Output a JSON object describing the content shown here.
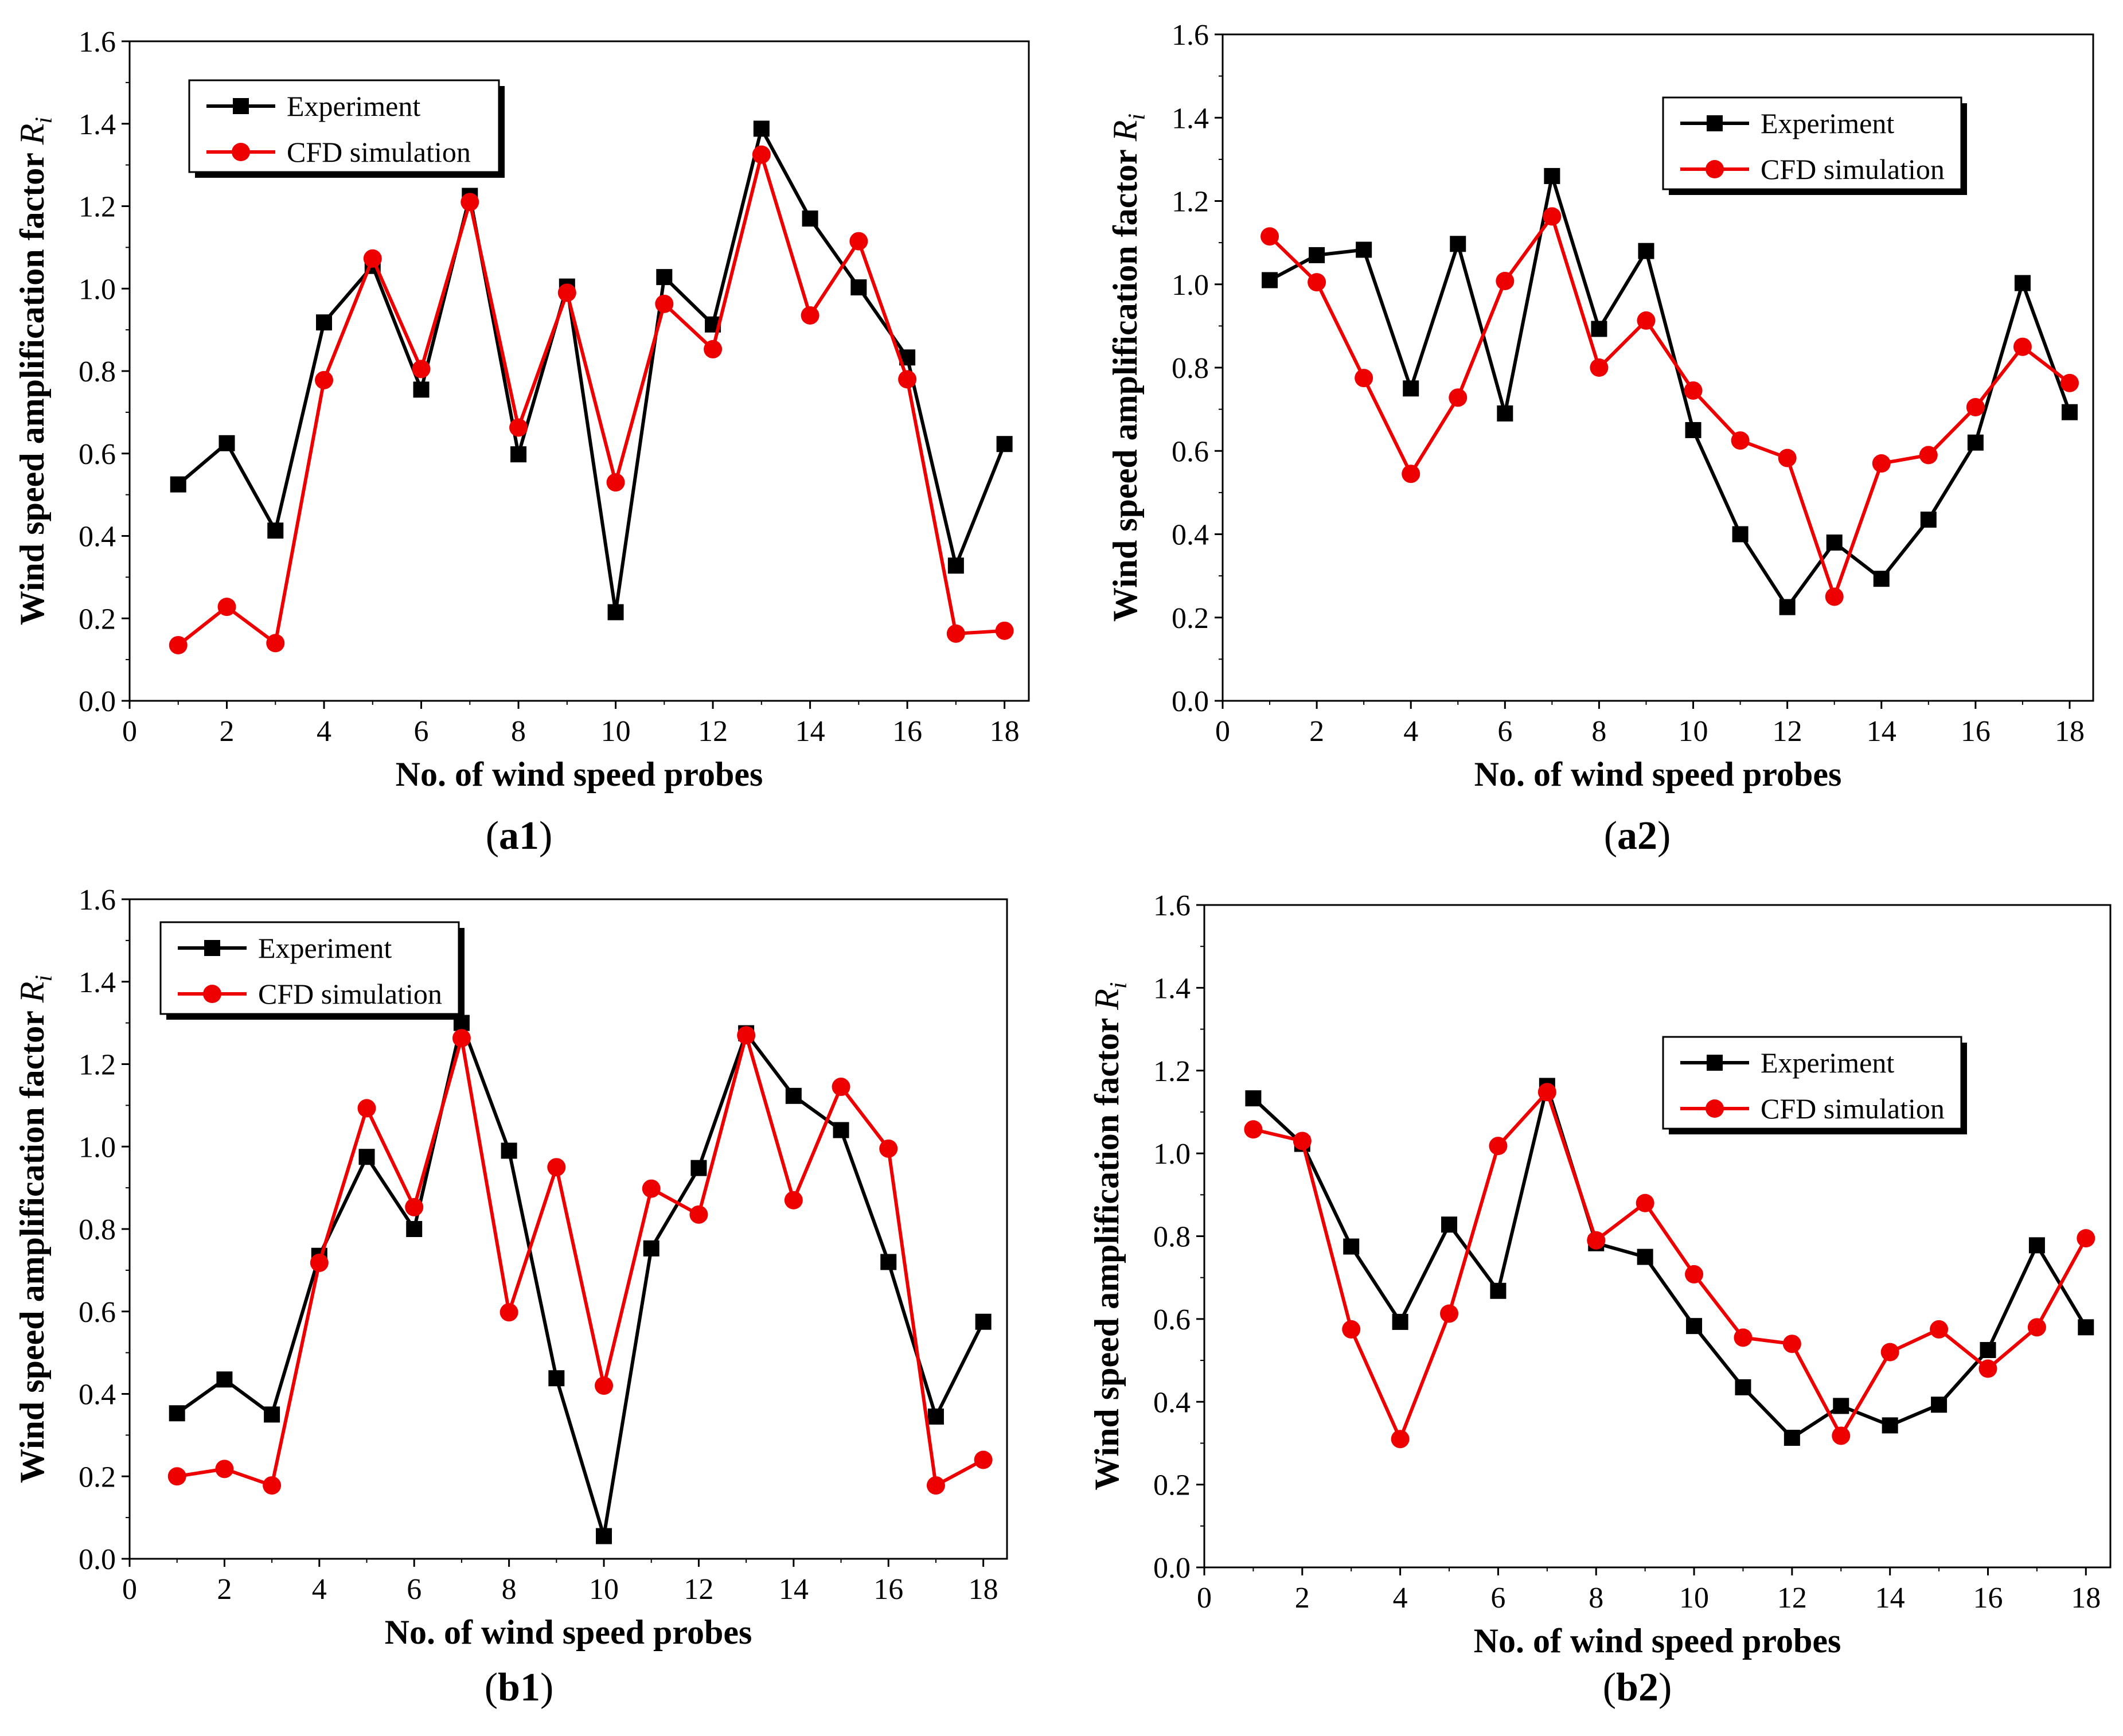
{
  "figure": {
    "panel_labels": {
      "a1": {
        "open": "(",
        "bold": "a1",
        "close": ")"
      },
      "a2": {
        "open": "(",
        "bold": "a2",
        "close": ")"
      },
      "b1": {
        "open": "(",
        "bold": "b1",
        "close": ")"
      },
      "b2": {
        "open": "(",
        "bold": "b2",
        "close": ")"
      }
    }
  },
  "colors": {
    "experiment": "#000000",
    "cfd": "#ee0000"
  },
  "chart_data": [
    {
      "id": "a1",
      "type": "line",
      "xlabel": "No. of wind speed probes",
      "ylabel_main": "Wind speed amplification factor ",
      "ylabel_var": "R",
      "ylabel_sub": "i",
      "xlim": [
        0,
        18.5
      ],
      "ylim": [
        0,
        1.6
      ],
      "xticks": [
        0,
        2,
        4,
        6,
        8,
        10,
        12,
        14,
        16,
        18
      ],
      "yticks": [
        "0.0",
        "0.2",
        "0.4",
        "0.6",
        "0.8",
        "1.0",
        "1.2",
        "1.4",
        "1.6"
      ],
      "legend_position": "top-left",
      "x": [
        1,
        2,
        3,
        4,
        5,
        6,
        7,
        8,
        9,
        10,
        11,
        12,
        13,
        14,
        15,
        16,
        17,
        18
      ],
      "series": [
        {
          "name": "Experiment",
          "marker": "square",
          "values": [
            0.525,
            0.625,
            0.413,
            0.918,
            1.055,
            0.755,
            1.225,
            0.598,
            1.005,
            0.215,
            1.028,
            0.913,
            1.388,
            1.17,
            1.003,
            0.833,
            0.328,
            0.623
          ]
        },
        {
          "name": "CFD simulation",
          "marker": "circle",
          "values": [
            0.135,
            0.228,
            0.14,
            0.778,
            1.073,
            0.805,
            1.21,
            0.663,
            0.99,
            0.53,
            0.963,
            0.853,
            1.325,
            0.935,
            1.115,
            0.78,
            0.163,
            0.17
          ]
        }
      ]
    },
    {
      "id": "a2",
      "type": "line",
      "xlabel": "No. of wind speed probes",
      "ylabel_main": "Wind speed amplification factor ",
      "ylabel_var": "R",
      "ylabel_sub": "i",
      "xlim": [
        0,
        18.5
      ],
      "ylim": [
        0,
        1.6
      ],
      "xticks": [
        0,
        2,
        4,
        6,
        8,
        10,
        12,
        14,
        16,
        18
      ],
      "yticks": [
        "0.0",
        "0.2",
        "0.4",
        "0.6",
        "0.8",
        "1.0",
        "1.2",
        "1.4",
        "1.6"
      ],
      "legend_position": "top-right",
      "x": [
        1,
        2,
        3,
        4,
        5,
        6,
        7,
        8,
        9,
        10,
        11,
        12,
        13,
        14,
        15,
        16,
        17,
        18
      ],
      "series": [
        {
          "name": "Experiment",
          "marker": "square",
          "values": [
            1.01,
            1.07,
            1.083,
            0.75,
            1.097,
            0.69,
            1.26,
            0.893,
            1.08,
            0.65,
            0.4,
            0.225,
            0.38,
            0.293,
            0.435,
            0.62,
            1.003,
            0.693
          ]
        },
        {
          "name": "CFD simulation",
          "marker": "circle",
          "values": [
            1.115,
            1.005,
            0.775,
            0.545,
            0.728,
            1.008,
            1.163,
            0.8,
            0.913,
            0.745,
            0.625,
            0.583,
            0.25,
            0.57,
            0.59,
            0.705,
            0.85,
            0.763
          ]
        }
      ]
    },
    {
      "id": "b1",
      "type": "line",
      "xlabel": "No. of wind speed probes",
      "ylabel_main": "Wind speed amplification factor ",
      "ylabel_var": "R",
      "ylabel_sub": "i",
      "xlim": [
        0,
        18.5
      ],
      "ylim": [
        0,
        1.6
      ],
      "xticks": [
        0,
        2,
        4,
        6,
        8,
        10,
        12,
        14,
        16,
        18
      ],
      "yticks": [
        "0.0",
        "0.2",
        "0.4",
        "0.6",
        "0.8",
        "1.0",
        "1.2",
        "1.4",
        "1.6"
      ],
      "legend_position": "top-left",
      "x": [
        1,
        2,
        3,
        4,
        5,
        6,
        7,
        8,
        9,
        10,
        11,
        12,
        13,
        14,
        15,
        16,
        17,
        18
      ],
      "series": [
        {
          "name": "Experiment",
          "marker": "square",
          "values": [
            0.353,
            0.435,
            0.35,
            0.735,
            0.975,
            0.8,
            1.3,
            0.99,
            0.438,
            0.055,
            0.753,
            0.948,
            1.275,
            1.123,
            1.04,
            0.72,
            0.345,
            0.575
          ]
        },
        {
          "name": "CFD simulation",
          "marker": "circle",
          "values": [
            0.2,
            0.218,
            0.178,
            0.718,
            1.093,
            0.853,
            1.263,
            0.598,
            0.95,
            0.42,
            0.898,
            0.835,
            1.27,
            0.87,
            1.145,
            0.995,
            0.178,
            0.24
          ]
        }
      ]
    },
    {
      "id": "b2",
      "type": "line",
      "xlabel": "No. of wind speed probes",
      "ylabel_main": "Wind speed amplification factor ",
      "ylabel_var": "R",
      "ylabel_sub": "i",
      "xlim": [
        0,
        18.5
      ],
      "ylim": [
        0,
        1.6
      ],
      "xticks": [
        0,
        2,
        4,
        6,
        8,
        10,
        12,
        14,
        16,
        18
      ],
      "yticks": [
        "0.0",
        "0.2",
        "0.4",
        "0.6",
        "0.8",
        "1.0",
        "1.2",
        "1.4",
        "1.6"
      ],
      "legend_position": "middle-right",
      "x": [
        1,
        2,
        3,
        4,
        5,
        6,
        7,
        8,
        9,
        10,
        11,
        12,
        13,
        14,
        15,
        16,
        17,
        18
      ],
      "series": [
        {
          "name": "Experiment",
          "marker": "square",
          "values": [
            1.133,
            1.023,
            0.775,
            0.593,
            0.828,
            0.668,
            1.163,
            0.783,
            0.75,
            0.583,
            0.435,
            0.313,
            0.39,
            0.343,
            0.393,
            0.525,
            0.778,
            0.58
          ]
        },
        {
          "name": "CFD simulation",
          "marker": "circle",
          "values": [
            1.058,
            1.03,
            0.575,
            0.31,
            0.613,
            1.018,
            1.148,
            0.79,
            0.88,
            0.708,
            0.555,
            0.54,
            0.318,
            0.52,
            0.575,
            0.48,
            0.58,
            0.795
          ]
        }
      ]
    }
  ]
}
